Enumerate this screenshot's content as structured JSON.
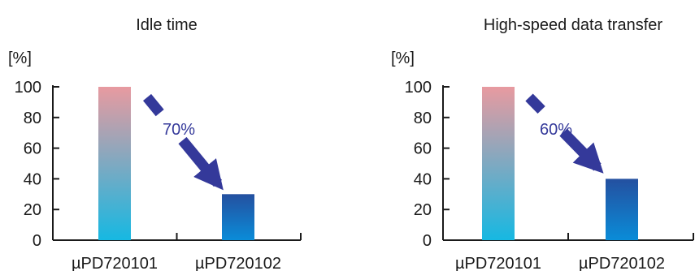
{
  "chart_data": [
    {
      "type": "bar",
      "title": "Idle time",
      "ylabel": "[%]",
      "categories": [
        "µPD720101",
        "µPD720102"
      ],
      "values": [
        100,
        30
      ],
      "ylim": [
        0,
        100
      ],
      "yticks": [
        0,
        20,
        40,
        60,
        80,
        100
      ],
      "annotation": "70%",
      "bar_colors": [
        {
          "top": "#e89aa0",
          "bottom": "#16b8e2"
        },
        {
          "top": "#2450a0",
          "bottom": "#0a8cd8"
        }
      ],
      "arrow_color": "#34399a"
    },
    {
      "type": "bar",
      "title": "High-speed data transfer",
      "ylabel": "[%]",
      "categories": [
        "µPD720101",
        "µPD720102"
      ],
      "values": [
        100,
        40
      ],
      "ylim": [
        0,
        100
      ],
      "yticks": [
        0,
        20,
        40,
        60,
        80,
        100
      ],
      "annotation": "60%",
      "bar_colors": [
        {
          "top": "#e89aa0",
          "bottom": "#16b8e2"
        },
        {
          "top": "#2450a0",
          "bottom": "#0a8cd8"
        }
      ],
      "arrow_color": "#34399a"
    }
  ]
}
